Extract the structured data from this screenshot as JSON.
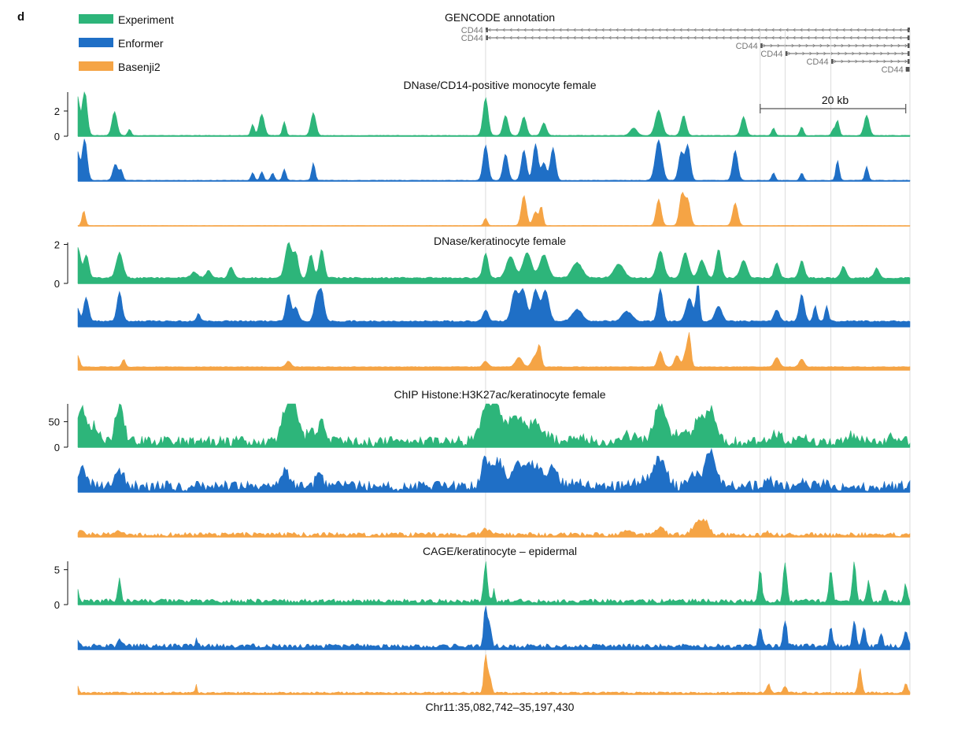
{
  "panel_letter": "d",
  "chart_data": {
    "type": "area",
    "xlabel": "Chr11:35,082,742–35,197,430",
    "legend": {
      "placement": "top-left",
      "entries": [
        {
          "name": "Experiment",
          "color": "#2db57a"
        },
        {
          "name": "Enformer",
          "color": "#1f6fc6"
        },
        {
          "name": "Basenji2",
          "color": "#f5a445"
        }
      ]
    },
    "annotation": {
      "title": "GENCODE annotation",
      "transcripts": [
        {
          "label": "CD44",
          "start": 0.49,
          "end": 1.0,
          "direction": "left"
        },
        {
          "label": "CD44",
          "start": 0.49,
          "end": 1.0,
          "direction": "left"
        },
        {
          "label": "CD44",
          "start": 0.82,
          "end": 1.0,
          "direction": "right"
        },
        {
          "label": "CD44",
          "start": 0.85,
          "end": 1.0,
          "direction": "right"
        },
        {
          "label": "CD44",
          "start": 0.905,
          "end": 1.0,
          "direction": "right"
        },
        {
          "label": "CD44",
          "start": 0.995,
          "end": 1.0,
          "direction": "right"
        }
      ],
      "scale_bar": {
        "label": "20 kb",
        "start": 0.82,
        "end": 0.995
      }
    },
    "gridlines_x": [
      0.49,
      0.82,
      0.85,
      0.905,
      1.0
    ],
    "tracks": [
      {
        "title": "DNase/CD14-positive monocyte female",
        "yticks": [
          "2",
          "0"
        ],
        "ylim": [
          0,
          3.5
        ],
        "base": 0.05,
        "noise": 0.05,
        "peaks": {
          "Experiment": [
            [
              0.0,
              3.0,
              0.002
            ],
            [
              0.008,
              3.6,
              0.003
            ],
            [
              0.044,
              1.9,
              0.003
            ],
            [
              0.062,
              0.5,
              0.002
            ],
            [
              0.21,
              0.9,
              0.002
            ],
            [
              0.221,
              1.7,
              0.003
            ],
            [
              0.248,
              1.1,
              0.002
            ],
            [
              0.283,
              1.8,
              0.003
            ],
            [
              0.49,
              3.0,
              0.003
            ],
            [
              0.514,
              1.6,
              0.003
            ],
            [
              0.536,
              1.5,
              0.003
            ],
            [
              0.56,
              1.0,
              0.003
            ],
            [
              0.668,
              0.6,
              0.004
            ],
            [
              0.698,
              2.0,
              0.004
            ],
            [
              0.728,
              1.6,
              0.003
            ],
            [
              0.8,
              1.5,
              0.003
            ],
            [
              0.836,
              0.6,
              0.002
            ],
            [
              0.87,
              0.7,
              0.002
            ],
            [
              0.908,
              0.5,
              0.002
            ],
            [
              0.913,
              1.2,
              0.002
            ],
            [
              0.948,
              1.6,
              0.003
            ]
          ],
          "Enformer": [
            [
              0.0,
              2.2,
              0.002
            ],
            [
              0.008,
              3.3,
              0.003
            ],
            [
              0.045,
              1.3,
              0.003
            ],
            [
              0.052,
              0.8,
              0.002
            ],
            [
              0.21,
              0.6,
              0.002
            ],
            [
              0.221,
              0.7,
              0.002
            ],
            [
              0.234,
              0.6,
              0.002
            ],
            [
              0.248,
              0.9,
              0.002
            ],
            [
              0.283,
              1.4,
              0.002
            ],
            [
              0.49,
              2.8,
              0.003
            ],
            [
              0.514,
              2.1,
              0.003
            ],
            [
              0.536,
              2.4,
              0.003
            ],
            [
              0.55,
              2.9,
              0.003
            ],
            [
              0.56,
              1.4,
              0.003
            ],
            [
              0.571,
              2.6,
              0.003
            ],
            [
              0.698,
              3.2,
              0.004
            ],
            [
              0.725,
              2.2,
              0.003
            ],
            [
              0.733,
              2.8,
              0.003
            ],
            [
              0.79,
              2.4,
              0.003
            ],
            [
              0.836,
              0.6,
              0.002
            ],
            [
              0.87,
              0.6,
              0.002
            ],
            [
              0.913,
              1.6,
              0.002
            ],
            [
              0.948,
              1.1,
              0.002
            ]
          ],
          "Basenji2": [
            [
              0.007,
              1.2,
              0.002
            ],
            [
              0.49,
              0.6,
              0.002
            ],
            [
              0.536,
              2.4,
              0.003
            ],
            [
              0.55,
              1.1,
              0.003
            ],
            [
              0.557,
              1.5,
              0.002
            ],
            [
              0.698,
              2.1,
              0.003
            ],
            [
              0.726,
              2.5,
              0.003
            ],
            [
              0.733,
              2.0,
              0.003
            ],
            [
              0.79,
              1.8,
              0.003
            ]
          ]
        }
      },
      {
        "title": "DNase/keratinocyte female",
        "yticks": [
          "2",
          "0"
        ],
        "ylim": [
          0,
          2.1
        ],
        "base": 0.25,
        "noise": 0.2,
        "peaks": {
          "Experiment": [
            [
              0.0,
              1.6,
              0.003
            ],
            [
              0.01,
              1.2,
              0.003
            ],
            [
              0.05,
              1.3,
              0.004
            ],
            [
              0.14,
              0.3,
              0.004
            ],
            [
              0.157,
              0.4,
              0.003
            ],
            [
              0.184,
              0.6,
              0.003
            ],
            [
              0.253,
              1.8,
              0.004
            ],
            [
              0.262,
              1.2,
              0.003
            ],
            [
              0.28,
              1.2,
              0.003
            ],
            [
              0.293,
              1.5,
              0.003
            ],
            [
              0.49,
              1.3,
              0.003
            ],
            [
              0.52,
              1.1,
              0.005
            ],
            [
              0.54,
              1.3,
              0.005
            ],
            [
              0.56,
              1.2,
              0.005
            ],
            [
              0.6,
              0.8,
              0.006
            ],
            [
              0.65,
              0.7,
              0.006
            ],
            [
              0.7,
              1.4,
              0.004
            ],
            [
              0.73,
              1.3,
              0.004
            ],
            [
              0.75,
              0.9,
              0.004
            ],
            [
              0.77,
              1.5,
              0.003
            ],
            [
              0.8,
              0.9,
              0.004
            ],
            [
              0.84,
              0.8,
              0.003
            ],
            [
              0.87,
              0.9,
              0.003
            ],
            [
              0.92,
              0.6,
              0.003
            ],
            [
              0.96,
              0.5,
              0.003
            ]
          ],
          "Enformer": [
            [
              0.0,
              0.7,
              0.002
            ],
            [
              0.01,
              1.2,
              0.003
            ],
            [
              0.05,
              1.5,
              0.003
            ],
            [
              0.145,
              0.4,
              0.002
            ],
            [
              0.253,
              1.4,
              0.003
            ],
            [
              0.262,
              0.7,
              0.003
            ],
            [
              0.287,
              1.2,
              0.003
            ],
            [
              0.293,
              1.5,
              0.003
            ],
            [
              0.49,
              0.6,
              0.003
            ],
            [
              0.525,
              1.5,
              0.004
            ],
            [
              0.535,
              1.6,
              0.004
            ],
            [
              0.55,
              1.6,
              0.004
            ],
            [
              0.562,
              1.6,
              0.004
            ],
            [
              0.6,
              0.6,
              0.006
            ],
            [
              0.66,
              0.5,
              0.006
            ],
            [
              0.7,
              1.7,
              0.003
            ],
            [
              0.735,
              1.2,
              0.004
            ],
            [
              0.745,
              2.1,
              0.002
            ],
            [
              0.77,
              0.8,
              0.004
            ],
            [
              0.84,
              0.6,
              0.003
            ],
            [
              0.87,
              1.4,
              0.003
            ],
            [
              0.886,
              0.8,
              0.002
            ],
            [
              0.9,
              0.8,
              0.002
            ]
          ],
          "Basenji2": [
            [
              0.0,
              0.6,
              0.002
            ],
            [
              0.055,
              0.4,
              0.002
            ],
            [
              0.253,
              0.3,
              0.003
            ],
            [
              0.49,
              0.3,
              0.003
            ],
            [
              0.53,
              0.5,
              0.004
            ],
            [
              0.55,
              0.6,
              0.004
            ],
            [
              0.555,
              0.9,
              0.002
            ],
            [
              0.7,
              0.8,
              0.003
            ],
            [
              0.72,
              0.6,
              0.003
            ],
            [
              0.731,
              0.8,
              0.003
            ],
            [
              0.735,
              1.4,
              0.002
            ],
            [
              0.84,
              0.5,
              0.003
            ],
            [
              0.87,
              0.4,
              0.003
            ]
          ]
        }
      },
      {
        "title": "ChIP Histone:H3K27ac/keratinocyte female",
        "yticks": [
          "50",
          "0"
        ],
        "ylim": [
          0,
          85
        ],
        "base": 1,
        "noise": 1.5,
        "peaks": {
          "Experiment": [
            [
              0.004,
              70,
              0.006
            ],
            [
              0.02,
              30,
              0.005
            ],
            [
              0.05,
              70,
              0.005
            ],
            [
              0.252,
              75,
              0.006
            ],
            [
              0.262,
              50,
              0.005
            ],
            [
              0.28,
              30,
              0.004
            ],
            [
              0.293,
              45,
              0.004
            ],
            [
              0.49,
              70,
              0.006
            ],
            [
              0.503,
              70,
              0.006
            ],
            [
              0.525,
              50,
              0.008
            ],
            [
              0.55,
              35,
              0.01
            ],
            [
              0.6,
              10,
              0.012
            ],
            [
              0.66,
              12,
              0.01
            ],
            [
              0.7,
              75,
              0.007
            ],
            [
              0.725,
              20,
              0.006
            ],
            [
              0.745,
              40,
              0.006
            ],
            [
              0.76,
              65,
              0.006
            ],
            [
              0.84,
              15,
              0.005
            ],
            [
              0.87,
              15,
              0.005
            ],
            [
              0.93,
              12,
              0.006
            ],
            [
              0.98,
              10,
              0.006
            ]
          ],
          "Enformer": [
            [
              0.004,
              35,
              0.006
            ],
            [
              0.05,
              32,
              0.005
            ],
            [
              0.25,
              30,
              0.004
            ],
            [
              0.29,
              30,
              0.004
            ],
            [
              0.49,
              50,
              0.005
            ],
            [
              0.505,
              50,
              0.006
            ],
            [
              0.53,
              40,
              0.008
            ],
            [
              0.55,
              40,
              0.008
            ],
            [
              0.57,
              35,
              0.006
            ],
            [
              0.6,
              8,
              0.012
            ],
            [
              0.68,
              12,
              0.01
            ],
            [
              0.7,
              55,
              0.007
            ],
            [
              0.74,
              25,
              0.006
            ],
            [
              0.76,
              72,
              0.006
            ],
            [
              0.83,
              12,
              0.005
            ],
            [
              0.87,
              12,
              0.005
            ],
            [
              0.9,
              6,
              0.005
            ]
          ],
          "Basenji2": [
            [
              0.004,
              12,
              0.004
            ],
            [
              0.05,
              6,
              0.004
            ],
            [
              0.49,
              10,
              0.005
            ],
            [
              0.66,
              10,
              0.004
            ],
            [
              0.7,
              12,
              0.005
            ],
            [
              0.745,
              25,
              0.006
            ],
            [
              0.755,
              20,
              0.004
            ],
            [
              0.83,
              4,
              0.004
            ]
          ]
        }
      },
      {
        "title": "CAGE/keratinocyte – epidermal",
        "yticks": [
          "5",
          "0"
        ],
        "ylim": [
          0,
          6.2
        ],
        "base": 0.2,
        "noise": 0.6,
        "peaks": {
          "Experiment": [
            [
              0.0,
              2.0,
              0.001
            ],
            [
              0.05,
              3.2,
              0.002
            ],
            [
              0.49,
              5.9,
              0.002
            ],
            [
              0.5,
              2.0,
              0.001
            ],
            [
              0.82,
              4.8,
              0.002
            ],
            [
              0.85,
              5.8,
              0.002
            ],
            [
              0.905,
              4.6,
              0.002
            ],
            [
              0.933,
              5.8,
              0.002
            ],
            [
              0.95,
              2.7,
              0.002
            ],
            [
              0.97,
              2.0,
              0.002
            ],
            [
              0.995,
              2.4,
              0.002
            ]
          ],
          "Enformer": [
            [
              0.0,
              1.1,
              0.001
            ],
            [
              0.05,
              1.0,
              0.002
            ],
            [
              0.142,
              1.3,
              0.001
            ],
            [
              0.49,
              6.0,
              0.002
            ],
            [
              0.495,
              3.0,
              0.002
            ],
            [
              0.82,
              3.0,
              0.002
            ],
            [
              0.85,
              3.8,
              0.002
            ],
            [
              0.905,
              3.0,
              0.002
            ],
            [
              0.933,
              3.8,
              0.002
            ],
            [
              0.945,
              2.8,
              0.002
            ],
            [
              0.965,
              2.0,
              0.002
            ],
            [
              0.995,
              2.3,
              0.002
            ]
          ],
          "Basenji2": [
            [
              0.0,
              1.1,
              0.001
            ],
            [
              0.142,
              1.2,
              0.001
            ],
            [
              0.49,
              5.5,
              0.002
            ],
            [
              0.495,
              2.2,
              0.002
            ],
            [
              0.83,
              1.3,
              0.002
            ],
            [
              0.85,
              1.0,
              0.002
            ],
            [
              0.94,
              3.5,
              0.002
            ],
            [
              0.995,
              1.3,
              0.002
            ]
          ]
        }
      }
    ]
  }
}
